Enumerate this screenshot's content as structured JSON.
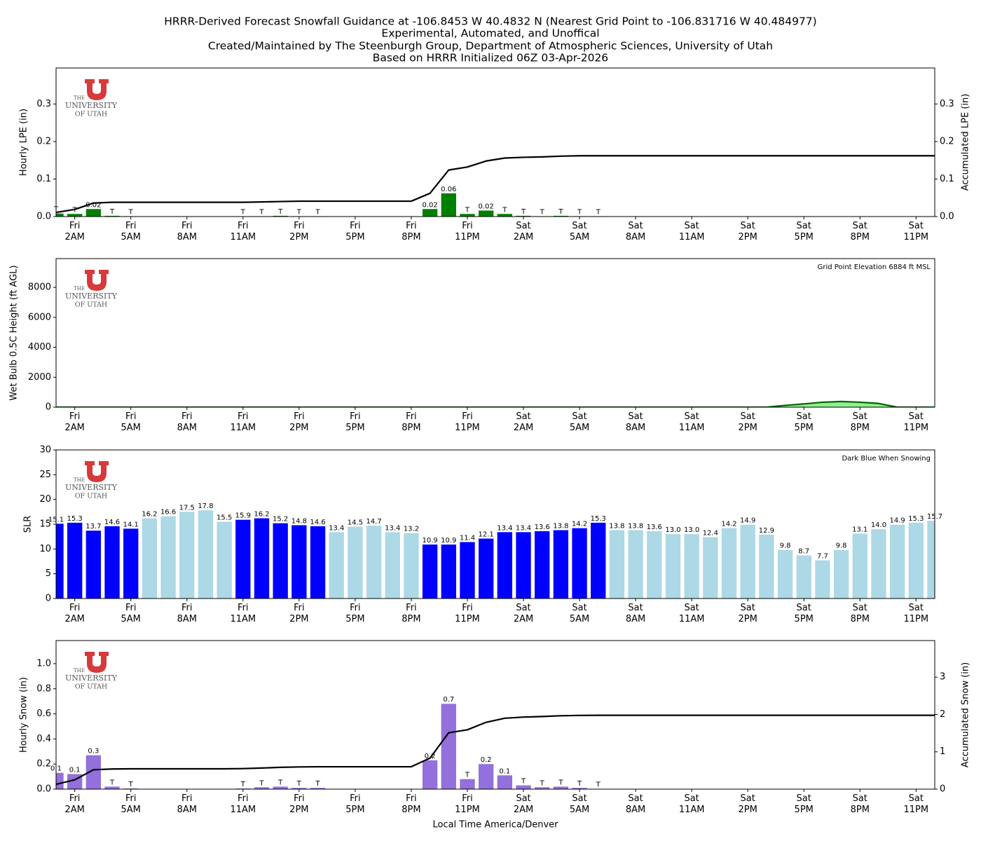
{
  "title_lines": [
    "HRRR-Derived Forecast Snowfall Guidance at -106.8453 W 40.4832 N (Nearest Grid Point to -106.831716 W 40.484977)",
    "Experimental, Automated, and Unoffical",
    "Created/Maintained by The Steenburgh Group, Department of Atmospheric Sciences, University of Utah",
    "Based on HRRR Initialized 06Z 03-Apr-2026"
  ],
  "logo_text": [
    "THE",
    "UNIVERSITY",
    "OF UTAH"
  ],
  "chart_data": [
    {
      "type": "bar",
      "ylabel": "Hourly LPE (in)",
      "y2label": "Accumulated LPE (in)",
      "ylim": [
        0,
        0.396
      ],
      "yticks": [
        {
          "value": 0,
          "label": "0.0"
        },
        0.1,
        0.2,
        0.3
      ],
      "y2lim": [
        0,
        0.396
      ],
      "y2ticks": [
        {
          "value": 0,
          "label": "0.0"
        },
        0.1,
        0.2,
        0.3
      ],
      "categories": [
        null,
        "Fri\n2AM",
        null,
        null,
        "Fri\n5AM",
        null,
        null,
        "Fri\n8AM",
        null,
        null,
        "Fri\n11AM",
        null,
        null,
        "Fri\n2PM",
        null,
        null,
        "Fri\n5PM",
        null,
        null,
        "Fri\n8PM",
        null,
        null,
        "Fri\n11PM",
        null,
        null,
        "Sat\n2AM",
        null,
        null,
        "Sat\n5AM",
        null,
        null,
        "Sat\n8AM",
        null,
        null,
        "Sat\n11AM",
        null,
        null,
        "Sat\n2PM",
        null,
        null,
        "Sat\n5PM",
        null,
        null,
        "Sat\n8PM",
        null,
        null,
        "Sat\n11PM",
        null
      ],
      "series": [
        {
          "kind": "bar",
          "color": "#008000",
          "values": [
            0.008,
            0.007,
            0.02,
            0.002,
            0.001,
            0,
            0,
            0,
            0,
            0,
            0.001,
            0.001,
            0.002,
            0.001,
            0.001,
            0,
            0,
            0,
            0,
            0,
            0.02,
            0.062,
            0.007,
            0.016,
            0.007,
            0.002,
            0.001,
            0.002,
            0.001,
            0.001,
            0,
            0,
            0,
            0,
            0,
            0,
            0,
            0,
            0,
            0,
            0,
            0,
            0,
            0,
            0,
            0,
            0,
            0
          ],
          "value_labels": [
            "T",
            "T",
            "0.02",
            "T",
            "T",
            null,
            null,
            null,
            null,
            null,
            "T",
            "T",
            "T",
            "T",
            "T",
            null,
            null,
            null,
            null,
            null,
            "0.02",
            "0.06",
            "T",
            "0.02",
            "T",
            "T",
            "T",
            "T",
            "T",
            "T",
            null,
            null,
            null,
            null,
            null,
            null,
            null,
            null,
            null,
            null,
            null,
            null,
            null,
            null,
            null,
            null,
            null,
            null
          ]
        },
        {
          "kind": "line",
          "axis": "y2",
          "color": "#000000",
          "values": [
            0.011,
            0.019,
            0.036,
            0.038,
            0.038,
            0.038,
            0.038,
            0.038,
            0.038,
            0.038,
            0.038,
            0.039,
            0.04,
            0.041,
            0.041,
            0.041,
            0.041,
            0.041,
            0.041,
            0.041,
            0.062,
            0.124,
            0.132,
            0.148,
            0.156,
            0.158,
            0.159,
            0.161,
            0.162,
            0.162,
            0.162,
            0.162,
            0.162,
            0.162,
            0.162,
            0.162,
            0.162,
            0.162,
            0.162,
            0.162,
            0.162,
            0.162,
            0.162,
            0.162,
            0.162,
            0.162,
            0.162,
            0.162
          ]
        }
      ]
    },
    {
      "type": "area",
      "ylabel": "Wet Bulb 0.5C Height (ft AGL)",
      "annotation": "Grid Point Elevation 6884 ft MSL",
      "ylim": [
        0,
        9920
      ],
      "yticks": [
        0,
        2000,
        4000,
        6000,
        8000
      ],
      "categories": [
        null,
        "Fri\n2AM",
        null,
        null,
        "Fri\n5AM",
        null,
        null,
        "Fri\n8AM",
        null,
        null,
        "Fri\n11AM",
        null,
        null,
        "Fri\n2PM",
        null,
        null,
        "Fri\n5PM",
        null,
        null,
        "Fri\n8PM",
        null,
        null,
        "Fri\n11PM",
        null,
        null,
        "Sat\n2AM",
        null,
        null,
        "Sat\n5AM",
        null,
        null,
        "Sat\n8AM",
        null,
        null,
        "Sat\n11AM",
        null,
        null,
        "Sat\n2PM",
        null,
        null,
        "Sat\n5PM",
        null,
        null,
        "Sat\n8PM",
        null,
        null,
        "Sat\n11PM",
        null
      ],
      "series": [
        {
          "kind": "area",
          "color": "#90ee90",
          "line_color": "#006400",
          "values": [
            0,
            0,
            0,
            0,
            0,
            0,
            0,
            0,
            0,
            0,
            0,
            0,
            0,
            0,
            0,
            0,
            0,
            0,
            0,
            0,
            0,
            0,
            0,
            0,
            0,
            0,
            0,
            0,
            0,
            0,
            0,
            0,
            0,
            0,
            0,
            0,
            0,
            0,
            0,
            120,
            220,
            330,
            380,
            330,
            250,
            0,
            0,
            0
          ]
        }
      ]
    },
    {
      "type": "bar",
      "ylabel": "SLR",
      "annotation": "Dark Blue When Snowing",
      "ylim": [
        0,
        30
      ],
      "yticks": [
        0,
        5,
        10,
        15,
        20,
        25,
        30
      ],
      "categories": [
        null,
        "Fri\n2AM",
        null,
        null,
        "Fri\n5AM",
        null,
        null,
        "Fri\n8AM",
        null,
        null,
        "Fri\n11AM",
        null,
        null,
        "Fri\n2PM",
        null,
        null,
        "Fri\n5PM",
        null,
        null,
        "Fri\n8PM",
        null,
        null,
        "Fri\n11PM",
        null,
        null,
        "Sat\n2AM",
        null,
        null,
        "Sat\n5AM",
        null,
        null,
        "Sat\n8AM",
        null,
        null,
        "Sat\n11AM",
        null,
        null,
        "Sat\n2PM",
        null,
        null,
        "Sat\n5PM",
        null,
        null,
        "Sat\n8PM",
        null,
        null,
        "Sat\n11PM",
        null
      ],
      "series": [
        {
          "kind": "bar",
          "values": [
            15.1,
            15.3,
            13.7,
            14.6,
            14.1,
            16.2,
            16.6,
            17.5,
            17.8,
            15.5,
            15.9,
            16.2,
            15.2,
            14.8,
            14.6,
            13.4,
            14.5,
            14.7,
            13.4,
            13.2,
            10.9,
            10.9,
            11.4,
            12.1,
            13.4,
            13.4,
            13.6,
            13.8,
            14.2,
            15.3,
            13.8,
            13.8,
            13.6,
            13,
            13,
            12.4,
            14.2,
            14.9,
            12.9,
            9.8,
            8.7,
            7.7,
            9.8,
            13.1,
            14,
            14.9,
            15.3,
            15.7
          ],
          "value_labels": [
            "15.1",
            "15.3",
            "13.7",
            "14.6",
            "14.1",
            "16.2",
            "16.6",
            "17.5",
            "17.8",
            "15.5",
            "15.9",
            "16.2",
            "15.2",
            "14.8",
            "14.6",
            "13.4",
            "14.5",
            "14.7",
            "13.4",
            "13.2",
            "10.9",
            "10.9",
            "11.4",
            "12.1",
            "13.4",
            "13.4",
            "13.6",
            "13.8",
            "14.2",
            "15.3",
            "13.8",
            "13.8",
            "13.6",
            "13.0",
            "13.0",
            "12.4",
            "14.2",
            "14.9",
            "12.9",
            "9.8",
            "8.7",
            "7.7",
            "9.8",
            "13.1",
            "14.0",
            "14.9",
            "15.3",
            "15.7"
          ],
          "colors": [
            "#0000ff",
            "#0000ff",
            "#0000ff",
            "#0000ff",
            "#0000ff",
            "#add8e6",
            "#add8e6",
            "#add8e6",
            "#add8e6",
            "#add8e6",
            "#0000ff",
            "#0000ff",
            "#0000ff",
            "#0000ff",
            "#0000ff",
            "#add8e6",
            "#add8e6",
            "#add8e6",
            "#add8e6",
            "#add8e6",
            "#0000ff",
            "#0000ff",
            "#0000ff",
            "#0000ff",
            "#0000ff",
            "#0000ff",
            "#0000ff",
            "#0000ff",
            "#0000ff",
            "#0000ff",
            "#add8e6",
            "#add8e6",
            "#add8e6",
            "#add8e6",
            "#add8e6",
            "#add8e6",
            "#add8e6",
            "#add8e6",
            "#add8e6",
            "#add8e6",
            "#add8e6",
            "#add8e6",
            "#add8e6",
            "#add8e6",
            "#add8e6",
            "#add8e6",
            "#add8e6",
            "#add8e6"
          ]
        }
      ]
    },
    {
      "type": "bar",
      "ylabel": "Hourly Snow (in)",
      "y2label": "Accumulated Snow (in)",
      "xlabel": "Local Time America/Denver",
      "ylim": [
        0,
        1.184
      ],
      "yticks": [
        {
          "value": 0,
          "label": "0.0"
        },
        0.2,
        0.4,
        0.6,
        0.8,
        {
          "value": 1,
          "label": "1.0"
        }
      ],
      "y2lim": [
        0,
        3.98
      ],
      "y2ticks": [
        0,
        1,
        2,
        3
      ],
      "categories": [
        null,
        "Fri\n2AM",
        null,
        null,
        "Fri\n5AM",
        null,
        null,
        "Fri\n8AM",
        null,
        null,
        "Fri\n11AM",
        null,
        null,
        "Fri\n2PM",
        null,
        null,
        "Fri\n5PM",
        null,
        null,
        "Fri\n8PM",
        null,
        null,
        "Fri\n11PM",
        null,
        null,
        "Sat\n2AM",
        null,
        null,
        "Sat\n5AM",
        null,
        null,
        "Sat\n8AM",
        null,
        null,
        "Sat\n11AM",
        null,
        null,
        "Sat\n2PM",
        null,
        null,
        "Sat\n5PM",
        null,
        null,
        "Sat\n8PM",
        null,
        null,
        "Sat\n11PM",
        null
      ],
      "series": [
        {
          "kind": "bar",
          "color": "#9370db",
          "values": [
            0.13,
            0.12,
            0.27,
            0.02,
            0.005,
            0,
            0,
            0,
            0,
            0,
            0.005,
            0.015,
            0.02,
            0.01,
            0.01,
            0,
            0,
            0,
            0,
            0,
            0.23,
            0.68,
            0.08,
            0.2,
            0.11,
            0.03,
            0.015,
            0.02,
            0.01,
            0.003,
            0,
            0,
            0,
            0,
            0,
            0,
            0,
            0,
            0,
            0,
            0,
            0,
            0,
            0,
            0,
            0,
            0,
            0
          ],
          "value_labels": [
            "0.1",
            "0.1",
            "0.3",
            "T",
            "T",
            null,
            null,
            null,
            null,
            null,
            "T",
            "T",
            "T",
            "T",
            "T",
            null,
            null,
            null,
            null,
            null,
            "0.2",
            "0.7",
            "T",
            "0.2",
            "0.1",
            "T",
            "T",
            "T",
            "T",
            "T",
            null,
            null,
            null,
            null,
            null,
            null,
            null,
            null,
            null,
            null,
            null,
            null,
            null,
            null,
            null,
            null,
            null,
            null
          ]
        },
        {
          "kind": "line",
          "axis": "y2",
          "color": "#000000",
          "values": [
            0.13,
            0.25,
            0.52,
            0.54,
            0.545,
            0.545,
            0.545,
            0.545,
            0.545,
            0.545,
            0.55,
            0.565,
            0.585,
            0.595,
            0.6,
            0.6,
            0.6,
            0.6,
            0.6,
            0.6,
            0.83,
            1.51,
            1.59,
            1.79,
            1.9,
            1.93,
            1.945,
            1.965,
            1.975,
            1.978,
            1.978,
            1.978,
            1.978,
            1.978,
            1.978,
            1.978,
            1.978,
            1.978,
            1.978,
            1.978,
            1.978,
            1.978,
            1.978,
            1.978,
            1.978,
            1.978,
            1.978,
            1.978
          ]
        }
      ]
    }
  ]
}
